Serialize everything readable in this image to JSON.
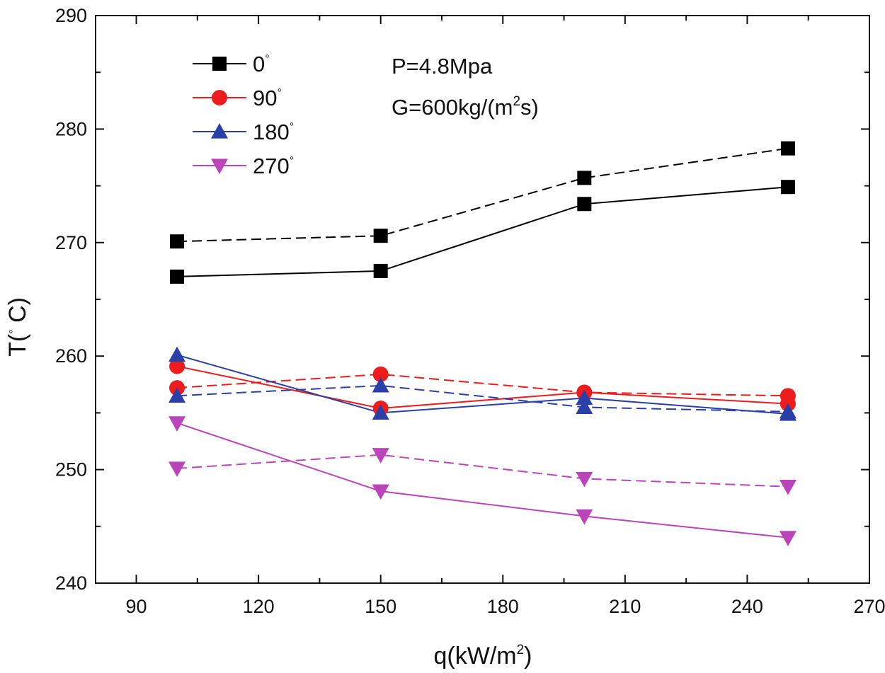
{
  "chart_data": {
    "type": "line",
    "xlabel": {
      "main": "q(kW/m",
      "sup": "2",
      "close": ")"
    },
    "ylabel": {
      "main": "T(",
      "deg": "°",
      "rest": " C)"
    },
    "xlim": [
      80,
      270
    ],
    "ylim": [
      240,
      290
    ],
    "x_ticks": [
      "90",
      "120",
      "150",
      "180",
      "210",
      "240",
      "270"
    ],
    "y_ticks": [
      "240",
      "250",
      "260",
      "270",
      "280",
      "290"
    ],
    "x_tick_values": [
      90,
      120,
      150,
      180,
      210,
      240,
      270
    ],
    "y_tick_values": [
      240,
      250,
      260,
      270,
      280,
      290
    ],
    "annotations": [
      {
        "text": "P=4.8Mpa"
      },
      {
        "main": "G=600kg/(m",
        "sup": "2",
        "rest": "s)"
      }
    ],
    "legend_position": "top-left",
    "legend": [
      {
        "label": "0",
        "deg": "°",
        "color": "#000000",
        "marker": "square"
      },
      {
        "label": "90",
        "deg": "°",
        "color": "#ee1c1c",
        "marker": "circle"
      },
      {
        "label": "180",
        "deg": "°",
        "color": "#2b3fa8",
        "marker": "triangle-up"
      },
      {
        "label": "270",
        "deg": "°",
        "color": "#bb44bb",
        "marker": "triangle-down"
      }
    ],
    "x": [
      100,
      150,
      200,
      250
    ],
    "series": [
      {
        "name": "0° solid",
        "color": "#000000",
        "marker": "square",
        "dashed": false,
        "values": [
          267.0,
          267.5,
          273.4,
          274.9
        ]
      },
      {
        "name": "0° dashed",
        "color": "#000000",
        "marker": "square",
        "dashed": true,
        "values": [
          270.1,
          270.6,
          275.7,
          278.3
        ]
      },
      {
        "name": "90° solid",
        "color": "#ee1c1c",
        "marker": "circle",
        "dashed": false,
        "values": [
          259.1,
          255.4,
          256.8,
          255.8
        ]
      },
      {
        "name": "90° dashed",
        "color": "#ee1c1c",
        "marker": "circle",
        "dashed": true,
        "values": [
          257.2,
          258.4,
          256.8,
          256.5
        ]
      },
      {
        "name": "180° solid",
        "color": "#2b3fa8",
        "marker": "triangle-up",
        "dashed": false,
        "values": [
          260.1,
          255.0,
          256.3,
          254.9
        ]
      },
      {
        "name": "180° dashed",
        "color": "#2b3fa8",
        "marker": "triangle-up",
        "dashed": true,
        "values": [
          256.5,
          257.4,
          255.5,
          255.1
        ]
      },
      {
        "name": "270° solid",
        "color": "#bb44bb",
        "marker": "triangle-down",
        "dashed": false,
        "values": [
          254.1,
          248.1,
          245.9,
          244.0
        ]
      },
      {
        "name": "270° dashed",
        "color": "#bb44bb",
        "marker": "triangle-down",
        "dashed": true,
        "values": [
          250.1,
          251.3,
          249.2,
          248.5
        ]
      }
    ]
  }
}
